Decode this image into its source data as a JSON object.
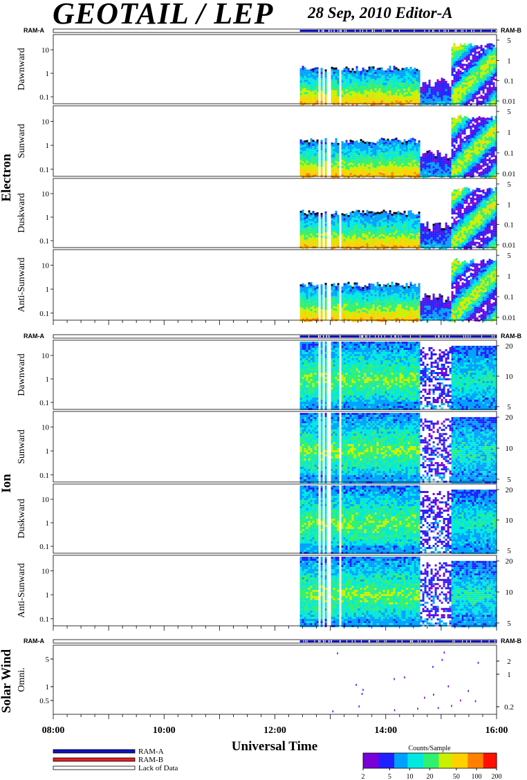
{
  "header": {
    "title": "GEOTAIL / LEP",
    "subtitle": "28 Sep, 2010   Editor-A"
  },
  "ram_labels": {
    "left": "RAM-A",
    "right": "RAM-B"
  },
  "groups": [
    {
      "label": "Electron"
    },
    {
      "label": "Ion"
    },
    {
      "label": "Solar Wind"
    }
  ],
  "chart_data": {
    "type": "heatmap",
    "xlabel": "Universal Time",
    "x_range": [
      "08:00",
      "16:00"
    ],
    "x_ticks": [
      "08:00",
      "10:00",
      "12:00",
      "14:00",
      "16:00"
    ],
    "data_start": "12:27",
    "data_gaps": [
      "12:47",
      "12:52",
      "12:58",
      "13:10"
    ],
    "electron_panels": [
      {
        "name": "Dawnward",
        "left_ticks": [
          "10",
          "1",
          "0.1"
        ],
        "right_ticks": [
          "5",
          "1",
          "0.1",
          "0.01"
        ]
      },
      {
        "name": "Sunward",
        "left_ticks": [
          "10",
          "1",
          "0.1"
        ],
        "right_ticks": [
          "5",
          "1",
          "0.1",
          "0.01"
        ]
      },
      {
        "name": "Duskward",
        "left_ticks": [
          "10",
          "1",
          "0.1"
        ],
        "right_ticks": [
          "5",
          "1",
          "0.1",
          "0.01"
        ]
      },
      {
        "name": "Anti-Sunward",
        "left_ticks": [
          "10",
          "1",
          "0.1"
        ],
        "right_ticks": [
          "5",
          "1",
          "0.1",
          "0.01"
        ]
      }
    ],
    "ion_panels": [
      {
        "name": "Dawnward",
        "left_ticks": [
          "10",
          "1",
          "0.1"
        ],
        "right_ticks": [
          "20",
          "10",
          "5"
        ]
      },
      {
        "name": "Sunward",
        "left_ticks": [
          "10",
          "1",
          "0.1"
        ],
        "right_ticks": [
          "20",
          "10",
          "5"
        ]
      },
      {
        "name": "Duskward",
        "left_ticks": [
          "10",
          "1",
          "0.1"
        ],
        "right_ticks": [
          "20",
          "10",
          "5"
        ]
      },
      {
        "name": "Anti-Sunward",
        "left_ticks": [
          "10",
          "1",
          "0.1"
        ],
        "right_ticks": [
          "20",
          "10",
          "5"
        ]
      }
    ],
    "solar_wind_panel": {
      "name": "Omni.",
      "left_ticks": [
        "5",
        "1",
        "0.5"
      ],
      "right_ticks": [
        "2",
        "1",
        "0.2"
      ]
    },
    "legend": {
      "items": [
        {
          "label": "RAM-A",
          "color": "#1010c0"
        },
        {
          "label": "RAM-B",
          "color": "#e02020"
        },
        {
          "label": "Lack of Data",
          "color": "#ffffff"
        }
      ]
    },
    "colorbar": {
      "title": "Counts/Sample",
      "ticks": [
        "2",
        "5",
        "10",
        "20",
        "50",
        "100",
        "200"
      ],
      "scale": "log",
      "range": [
        2,
        200
      ],
      "colors": [
        "#7a00d8",
        "#2020ff",
        "#00a0ff",
        "#00e8e0",
        "#30f070",
        "#c8f000",
        "#ffd000",
        "#ff8000",
        "#ff1000"
      ]
    }
  }
}
